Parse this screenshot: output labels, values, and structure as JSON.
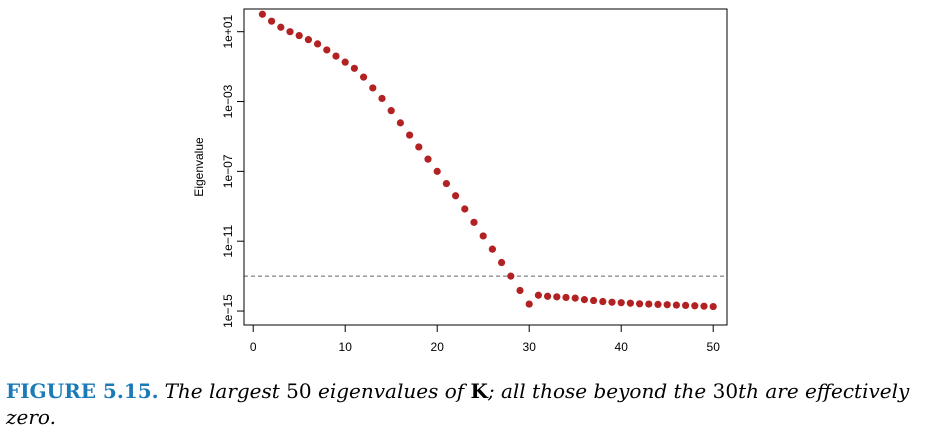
{
  "chart_data": {
    "type": "scatter",
    "ylabel": "Eigenvalue",
    "xlabel": "",
    "title": "",
    "x_ticks": [
      "0",
      "10",
      "20",
      "30",
      "40",
      "50"
    ],
    "y_ticks": [
      "1e+01",
      "1e−03",
      "1e−07",
      "1e−11",
      "1e−15"
    ],
    "y_scale": "log10",
    "xlim": [
      -1,
      51.5
    ],
    "ylim_log10": [
      -15.8,
      2.3
    ],
    "reference_line": {
      "y": 1e-13,
      "style": "dashed",
      "color": "#666666"
    },
    "point_color": "#b22222",
    "x": [
      1,
      2,
      3,
      4,
      5,
      6,
      7,
      8,
      9,
      10,
      11,
      12,
      13,
      14,
      15,
      16,
      17,
      18,
      19,
      20,
      21,
      22,
      23,
      24,
      25,
      26,
      27,
      28,
      29,
      30,
      31,
      32,
      33,
      34,
      35,
      36,
      37,
      38,
      39,
      40,
      41,
      42,
      43,
      44,
      45,
      46,
      47,
      48,
      49,
      50
    ],
    "y": [
      100.0,
      40.0,
      18.0,
      10.0,
      6.0,
      3.5,
      2.0,
      0.9,
      0.4,
      0.18,
      0.08,
      0.025,
      0.006,
      0.0015,
      0.0003,
      6e-05,
      1.2e-05,
      2.5e-06,
      5e-07,
      1e-07,
      2e-08,
      4e-09,
      7e-10,
      1.2e-10,
      2e-11,
      3.5e-12,
      6e-13,
      1e-13,
      1.5e-14,
      2.5e-15,
      8e-15,
      7e-15,
      6.5e-15,
      6e-15,
      5.5e-15,
      4.5e-15,
      4e-15,
      3.5e-15,
      3.2e-15,
      3e-15,
      2.8e-15,
      2.6e-15,
      2.5e-15,
      2.4e-15,
      2.3e-15,
      2.2e-15,
      2.1e-15,
      2e-15,
      1.9e-15,
      1.8e-15
    ]
  },
  "caption": {
    "label": "FIGURE 5.15.",
    "part1": "The largest",
    "num1": "50",
    "part2": "eigenvalues of",
    "matrix": "K",
    "part3": "; all those beyond the",
    "num2": "30",
    "part4": "th are effectively zero."
  }
}
